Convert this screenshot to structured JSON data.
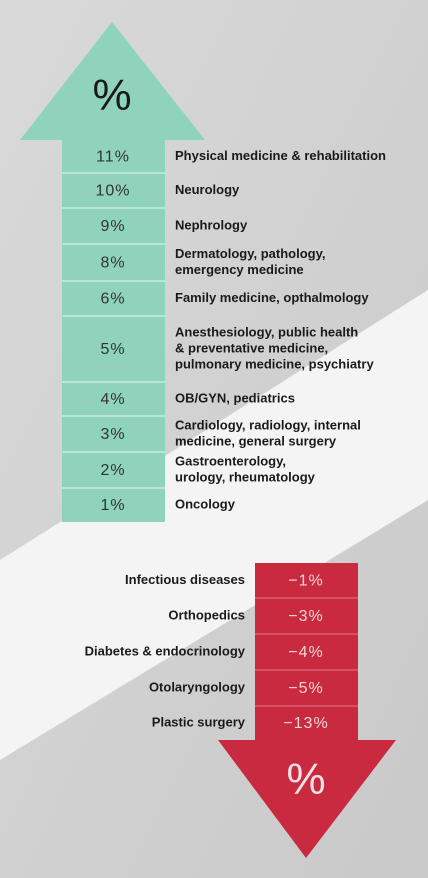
{
  "up": {
    "symbol": "%",
    "rows": [
      {
        "percent": "11%",
        "lines": [
          "Physical medicine & rehabilitation"
        ]
      },
      {
        "percent": "10%",
        "lines": [
          "Neurology"
        ]
      },
      {
        "percent": "9%",
        "lines": [
          "Nephrology"
        ]
      },
      {
        "percent": "8%",
        "lines": [
          "Dermatology, pathology,",
          "emergency medicine"
        ]
      },
      {
        "percent": "6%",
        "lines": [
          "Family medicine, opthalmology"
        ]
      },
      {
        "percent": "5%",
        "lines": [
          "Anesthesiology, public health",
          "& preventative medicine,",
          "pulmonary medicine, psychiatry"
        ]
      },
      {
        "percent": "4%",
        "lines": [
          "OB/GYN, pediatrics"
        ]
      },
      {
        "percent": "3%",
        "lines": [
          "Cardiology, radiology, internal",
          "medicine, general surgery"
        ]
      },
      {
        "percent": "2%",
        "lines": [
          "Gastroenterology,",
          "urology, rheumatology"
        ]
      },
      {
        "percent": "1%",
        "lines": [
          "Oncology"
        ]
      }
    ]
  },
  "down": {
    "symbol": "%",
    "rows": [
      {
        "percent": "−1%",
        "label": "Infectious diseases"
      },
      {
        "percent": "−3%",
        "label": "Orthopedics"
      },
      {
        "percent": "−4%",
        "label": "Diabetes & endocrinology"
      },
      {
        "percent": "−5%",
        "label": "Otolaryngology"
      },
      {
        "percent": "−13%",
        "label": "Plastic surgery"
      }
    ]
  }
}
